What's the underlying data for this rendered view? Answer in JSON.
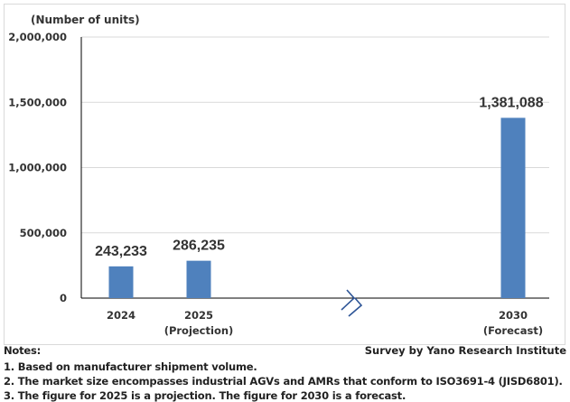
{
  "chart_data": {
    "type": "bar",
    "title": "",
    "ylabel": "(Number of units)",
    "xlabel": "",
    "ylim": [
      0,
      2000000
    ],
    "yticks": [
      0,
      500000,
      1000000,
      1500000,
      2000000
    ],
    "ytick_labels": [
      "0",
      "500,000",
      "1,000,000",
      "1,500,000",
      "2,000,000"
    ],
    "categories": [
      "2024",
      "2025",
      "2030"
    ],
    "category_sublabels": [
      "",
      "(Projection)",
      "(Forecast)"
    ],
    "values": [
      243233,
      286235,
      1381088
    ],
    "data_labels": [
      "243,233",
      "286,235",
      "1,381,088"
    ],
    "axis_break": "between 2025 and 2030",
    "grid": true,
    "bar_color": "#4f81bd"
  },
  "notes": {
    "heading": "Notes:",
    "source": "Survey by Yano Research Institute",
    "lines": [
      "1. Based on manufacturer shipment volume.",
      "2. The market size encompasses industrial AGVs and AMRs that conform to ISO3691-4 (JISD6801).",
      "3. The figure for 2025 is a projection. The figure for 2030 is a forecast."
    ]
  }
}
